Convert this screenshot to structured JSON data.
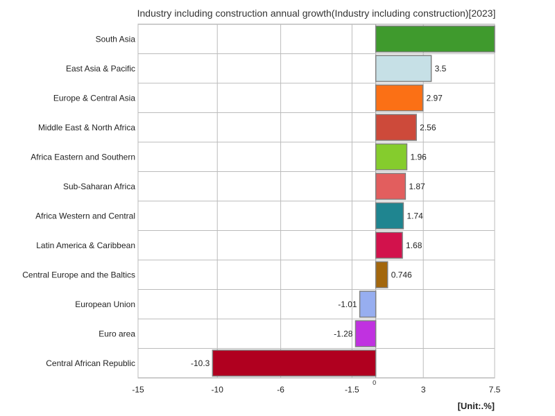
{
  "chart_data": {
    "type": "bar",
    "orientation": "horizontal",
    "title": "Industry including construction annual growth(Industry including construction)[2023]",
    "unit_label": "[Unit:.%]",
    "categories": [
      "South Asia",
      "East Asia & Pacific",
      "Europe & Central Asia",
      "Middle East & North Africa",
      "Africa Eastern and Southern",
      "Sub-Saharan Africa",
      "Africa Western and Central",
      "Latin America & Caribbean",
      "Central Europe and the Baltics",
      "European Union",
      "Euro area",
      "Central African Republic"
    ],
    "values": [
      7.5,
      3.5,
      2.97,
      2.56,
      1.96,
      1.87,
      1.74,
      1.68,
      0.746,
      -1.01,
      -1.28,
      -10.3
    ],
    "data_labels": [
      "",
      "3.5",
      "2.97",
      "2.56",
      "1.96",
      "1.87",
      "1.74",
      "1.68",
      "0.746",
      "-1.01",
      "-1.28",
      "-10.3"
    ],
    "colors": [
      "#3f9a2d",
      "#c6e0e6",
      "#fb7015",
      "#cd4a3a",
      "#85cc2d",
      "#e25e5e",
      "#1f8590",
      "#d2124c",
      "#a3670d",
      "#97aef0",
      "#c032e0",
      "#b0001f"
    ],
    "xlim": [
      -15,
      7.5
    ],
    "xticks": [
      "-15",
      "-10",
      "-6",
      "-1.5",
      "3",
      "7.5"
    ],
    "xtick_values": [
      -15,
      -10,
      -6,
      -1.5,
      3,
      7.5
    ],
    "zero_label": "0",
    "grid": true
  }
}
